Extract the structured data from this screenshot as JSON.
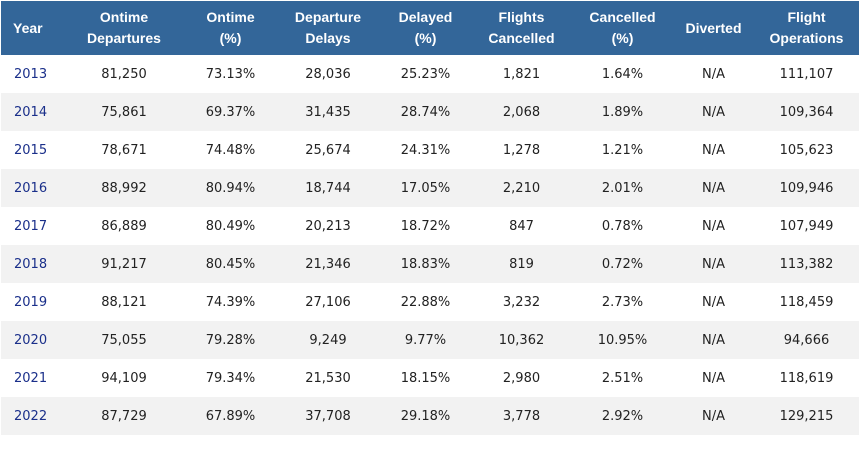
{
  "table": {
    "headers": [
      {
        "line1": "Year",
        "line2": ""
      },
      {
        "line1": "Ontime",
        "line2": "Departures"
      },
      {
        "line1": "Ontime",
        "line2": "(%)"
      },
      {
        "line1": "Departure",
        "line2": "Delays"
      },
      {
        "line1": "Delayed",
        "line2": "(%)"
      },
      {
        "line1": "Flights",
        "line2": "Cancelled"
      },
      {
        "line1": "Cancelled",
        "line2": "(%)"
      },
      {
        "line1": "Diverted",
        "line2": ""
      },
      {
        "line1": "Flight",
        "line2": "Operations"
      }
    ],
    "rows": [
      [
        "2013",
        "81,250",
        "73.13%",
        "28,036",
        "25.23%",
        "1,821",
        "1.64%",
        "N/A",
        "111,107"
      ],
      [
        "2014",
        "75,861",
        "69.37%",
        "31,435",
        "28.74%",
        "2,068",
        "1.89%",
        "N/A",
        "109,364"
      ],
      [
        "2015",
        "78,671",
        "74.48%",
        "25,674",
        "24.31%",
        "1,278",
        "1.21%",
        "N/A",
        "105,623"
      ],
      [
        "2016",
        "88,992",
        "80.94%",
        "18,744",
        "17.05%",
        "2,210",
        "2.01%",
        "N/A",
        "109,946"
      ],
      [
        "2017",
        "86,889",
        "80.49%",
        "20,213",
        "18.72%",
        "847",
        "0.78%",
        "N/A",
        "107,949"
      ],
      [
        "2018",
        "91,217",
        "80.45%",
        "21,346",
        "18.83%",
        "819",
        "0.72%",
        "N/A",
        "113,382"
      ],
      [
        "2019",
        "88,121",
        "74.39%",
        "27,106",
        "22.88%",
        "3,232",
        "2.73%",
        "N/A",
        "118,459"
      ],
      [
        "2020",
        "75,055",
        "79.28%",
        "9,249",
        "9.77%",
        "10,362",
        "10.95%",
        "N/A",
        "94,666"
      ],
      [
        "2021",
        "94,109",
        "79.34%",
        "21,530",
        "18.15%",
        "2,980",
        "2.51%",
        "N/A",
        "118,619"
      ],
      [
        "2022",
        "87,729",
        "67.89%",
        "37,708",
        "29.18%",
        "3,778",
        "2.92%",
        "N/A",
        "129,215"
      ]
    ]
  },
  "colors": {
    "header_bg": "#336699",
    "year_link": "#1a2f8a",
    "stripe": "#f2f2f2"
  }
}
